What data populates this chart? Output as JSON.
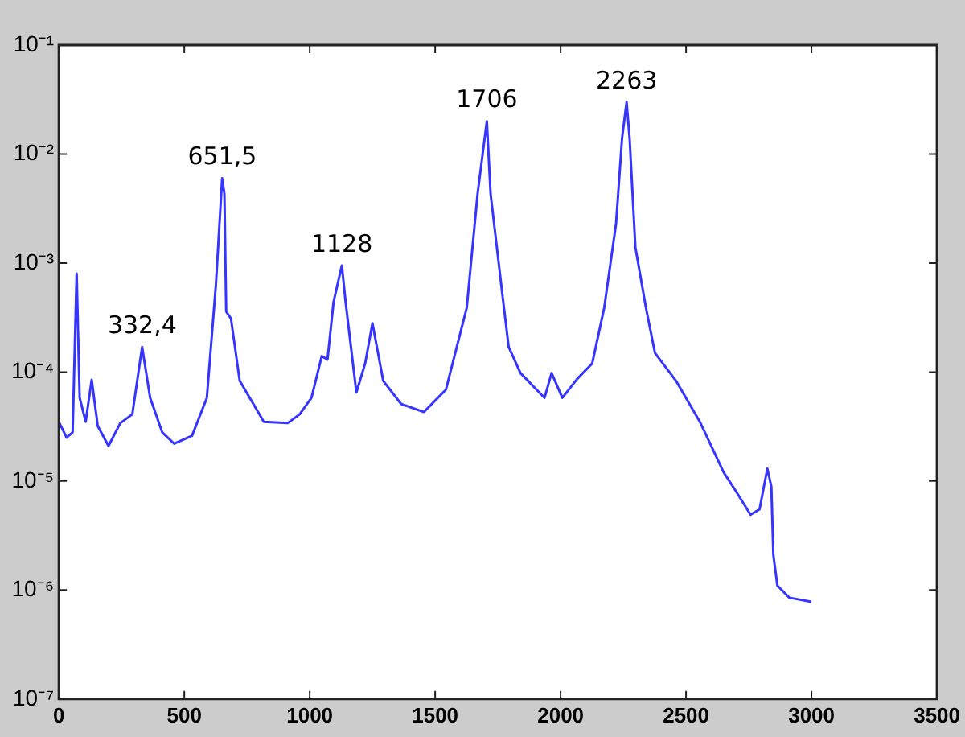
{
  "chart_data": {
    "type": "line",
    "log": "y",
    "xlim": [
      0,
      3500
    ],
    "xticks": [
      0,
      500,
      1000,
      1500,
      2000,
      2500,
      3000,
      3500
    ],
    "ylim": [
      1e-07,
      0.1
    ],
    "yticks": [
      {
        "value": 1e-07,
        "label": "10⁻⁷"
      },
      {
        "value": 1e-06,
        "label": "10⁻⁶"
      },
      {
        "value": 1e-05,
        "label": "10⁻⁵"
      },
      {
        "value": 0.0001,
        "label": "10⁻⁴"
      },
      {
        "value": 0.001,
        "label": "10⁻³"
      },
      {
        "value": 0.01,
        "label": "10⁻²"
      },
      {
        "value": 0.1,
        "label": "10⁻¹"
      }
    ],
    "marker": "none",
    "line_style": "solid",
    "series": [
      {
        "color": "#3535ff",
        "x": [
          0,
          31,
          55,
          71,
          83,
          107,
          131,
          155,
          198,
          245,
          293,
          332,
          364,
          412,
          460,
          531,
          590,
          626,
          651,
          660,
          667,
          686,
          721,
          817,
          912,
          960,
          1007,
          1048,
          1071,
          1095,
          1128,
          1143,
          1186,
          1221,
          1250,
          1293,
          1364,
          1455,
          1543,
          1626,
          1669,
          1706,
          1721,
          1769,
          1793,
          1840,
          1936,
          1964,
          2007,
          2067,
          2126,
          2174,
          2221,
          2245,
          2263,
          2275,
          2298,
          2340,
          2376,
          2460,
          2555,
          2650,
          2700,
          2757,
          2793,
          2824,
          2840,
          2848,
          2864,
          2912,
          3000
        ],
        "values": [
          3.5e-05,
          2.5e-05,
          2.8e-05,
          0.0008,
          5.8e-05,
          3.5e-05,
          8.5e-05,
          3.2e-05,
          2.1e-05,
          3.4e-05,
          4.1e-05,
          0.00017,
          5.8e-05,
          2.8e-05,
          2.2e-05,
          2.6e-05,
          5.8e-05,
          0.00063,
          0.006,
          0.0043,
          0.00036,
          0.00031,
          8.3e-05,
          3.5e-05,
          3.4e-05,
          4.1e-05,
          5.8e-05,
          0.00014,
          0.00013,
          0.00044,
          0.00095,
          0.00044,
          6.5e-05,
          0.00012,
          0.00028,
          8.3e-05,
          5.1e-05,
          4.3e-05,
          6.9e-05,
          0.00039,
          0.0043,
          0.02,
          0.0043,
          0.00049,
          0.00017,
          9.8e-05,
          5.8e-05,
          9.8e-05,
          5.8e-05,
          8.7e-05,
          0.00012,
          0.00039,
          0.0023,
          0.014,
          0.03,
          0.014,
          0.0014,
          0.00039,
          0.00015,
          8.3e-05,
          3.5e-05,
          1.2e-05,
          8e-06,
          4.9e-06,
          5.5e-06,
          1.3e-05,
          8.9e-06,
          2.1e-06,
          1.1e-06,
          8.5e-07,
          7.8e-07
        ]
      }
    ],
    "annotations": [
      {
        "text": "332,4",
        "x": 332.4,
        "y": 0.00017
      },
      {
        "text": "651,5",
        "x": 651.5,
        "y": 0.006
      },
      {
        "text": "1128",
        "x": 1128,
        "y": 0.00095
      },
      {
        "text": "1706",
        "x": 1706,
        "y": 0.02
      },
      {
        "text": "2263",
        "x": 2263,
        "y": 0.03
      }
    ]
  }
}
